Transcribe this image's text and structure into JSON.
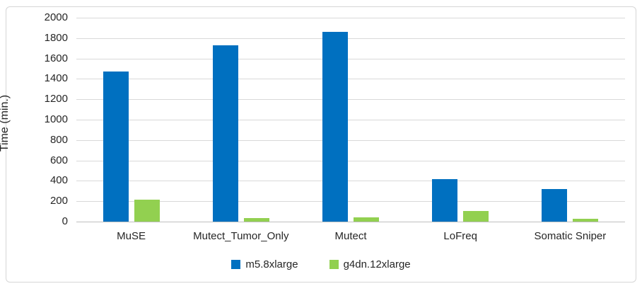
{
  "chart_data": {
    "type": "bar",
    "title": "",
    "ylabel": "Time (min.)",
    "xlabel": "",
    "ylim": [
      0,
      2000
    ],
    "ytick_step": 200,
    "grid": true,
    "legend_position": "bottom",
    "categories": [
      "MuSE",
      "Mutect_Tumor_Only",
      "Mutect",
      "LoFreq",
      "Somatic Sniper"
    ],
    "series": [
      {
        "name": "m5.8xlarge",
        "color": "#0070C0",
        "values": [
          1470,
          1730,
          1860,
          420,
          320
        ]
      },
      {
        "name": "g4dn.12xlarge",
        "color": "#92D050",
        "values": [
          215,
          35,
          45,
          105,
          30
        ]
      }
    ]
  },
  "colors": {
    "gridline": "#d9d9d9",
    "zero_axis": "#bfbfbf",
    "text": "#262626",
    "frame_border": "#d6d6d6",
    "background": "#ffffff"
  }
}
